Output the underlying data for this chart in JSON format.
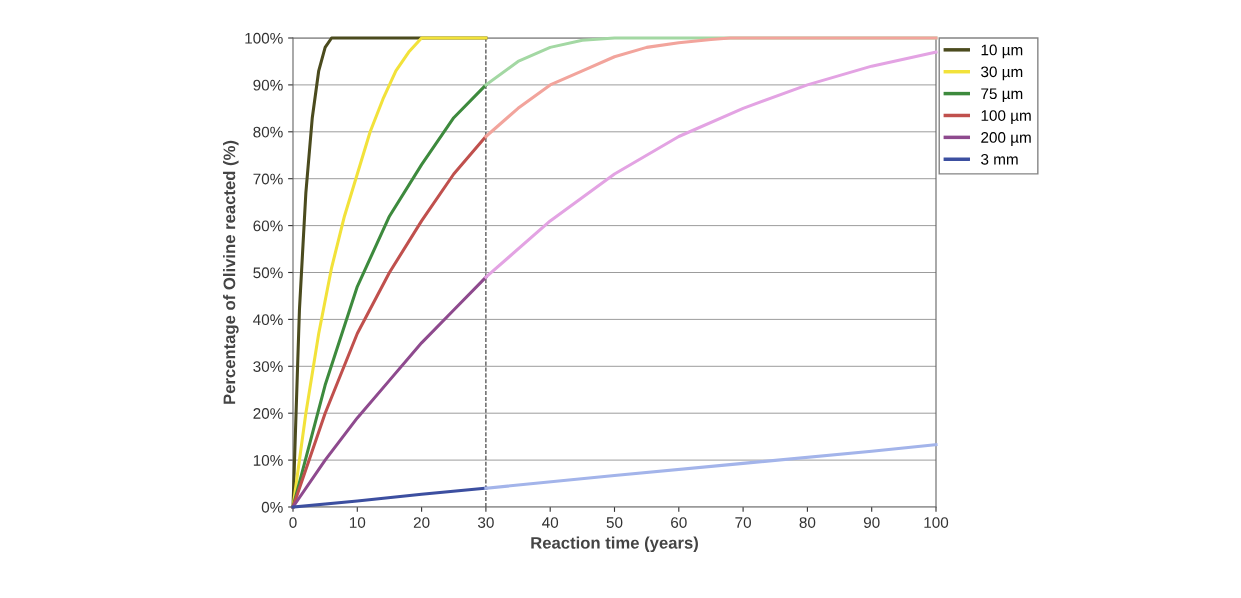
{
  "chart_data": {
    "type": "line",
    "xlabel": "Reaction time (years)",
    "ylabel": "Percentage of Olivine reacted (%)",
    "xlim": [
      0,
      100
    ],
    "xticks": [
      0,
      10,
      20,
      30,
      40,
      50,
      60,
      70,
      80,
      90,
      100
    ],
    "ylim": [
      0,
      100
    ],
    "yticks": [
      {
        "value": 0,
        "label": "0%"
      },
      {
        "value": 10,
        "label": "10%"
      },
      {
        "value": 20,
        "label": "20%"
      },
      {
        "value": 30,
        "label": "30%"
      },
      {
        "value": 40,
        "label": "40%"
      },
      {
        "value": 50,
        "label": "50%"
      },
      {
        "value": 60,
        "label": "60%"
      },
      {
        "value": 70,
        "label": "70%"
      },
      {
        "value": 80,
        "label": "80%"
      },
      {
        "value": 90,
        "label": "90%"
      },
      {
        "value": 100,
        "label": "100%"
      }
    ],
    "grid": "y",
    "legend": "top right",
    "marker": "none",
    "line_style": "solid",
    "ref_lines": [
      {
        "axis": "x",
        "value": 30,
        "color": "#333333",
        "line_style": "dashed"
      }
    ],
    "series": [
      {
        "name": "10 µm",
        "color": "#4b4b1e",
        "x": [
          0,
          1,
          2,
          3,
          4,
          5,
          6,
          7,
          30
        ],
        "values": [
          0,
          42,
          67,
          83,
          93,
          98,
          100,
          100,
          100
        ]
      },
      {
        "name": "30 µm",
        "color": "#f2e23a",
        "x": [
          0,
          2,
          4,
          6,
          8,
          10,
          12,
          14,
          16,
          18,
          20,
          30
        ],
        "values": [
          0,
          20,
          37,
          51,
          62,
          71,
          80,
          87,
          93,
          97,
          100,
          100
        ]
      },
      {
        "name": "75 µm",
        "color": "#3d8a3d",
        "x": [
          0,
          5,
          10,
          15,
          20,
          25,
          30
        ],
        "values": [
          0,
          26,
          47,
          62,
          73,
          83,
          90
        ]
      },
      {
        "name": "100 µm",
        "color": "#c0504d",
        "x": [
          0,
          5,
          10,
          15,
          20,
          25,
          30
        ],
        "values": [
          0,
          20,
          37,
          50,
          61,
          71,
          79
        ]
      },
      {
        "name": "200 µm",
        "color": "#8e4a8e",
        "x": [
          0,
          5,
          10,
          15,
          20,
          25,
          30
        ],
        "values": [
          0,
          10,
          19,
          27,
          35,
          42,
          49
        ]
      },
      {
        "name": "3 mm",
        "color": "#3c4fa0",
        "x": [
          0,
          10,
          20,
          30
        ],
        "values": [
          0,
          1.3,
          2.7,
          4
        ]
      },
      {
        "color": "#a3d8a3",
        "x": [
          30,
          35,
          40,
          45,
          50,
          100
        ],
        "values": [
          90,
          95,
          98,
          99.5,
          100,
          100
        ]
      },
      {
        "color": "#f2a49c",
        "x": [
          30,
          35,
          40,
          45,
          50,
          55,
          60,
          65,
          68,
          100
        ],
        "values": [
          79,
          85,
          90,
          93,
          96,
          98,
          99,
          99.7,
          100,
          100
        ]
      },
      {
        "color": "#e3a3e3",
        "x": [
          30,
          40,
          50,
          60,
          70,
          80,
          90,
          100
        ],
        "values": [
          49,
          61,
          71,
          79,
          85,
          90,
          94,
          97
        ]
      },
      {
        "color": "#a3b4ea",
        "x": [
          30,
          50,
          70,
          90,
          100
        ],
        "values": [
          4,
          6.7,
          9.3,
          11.9,
          13.3
        ]
      }
    ]
  }
}
